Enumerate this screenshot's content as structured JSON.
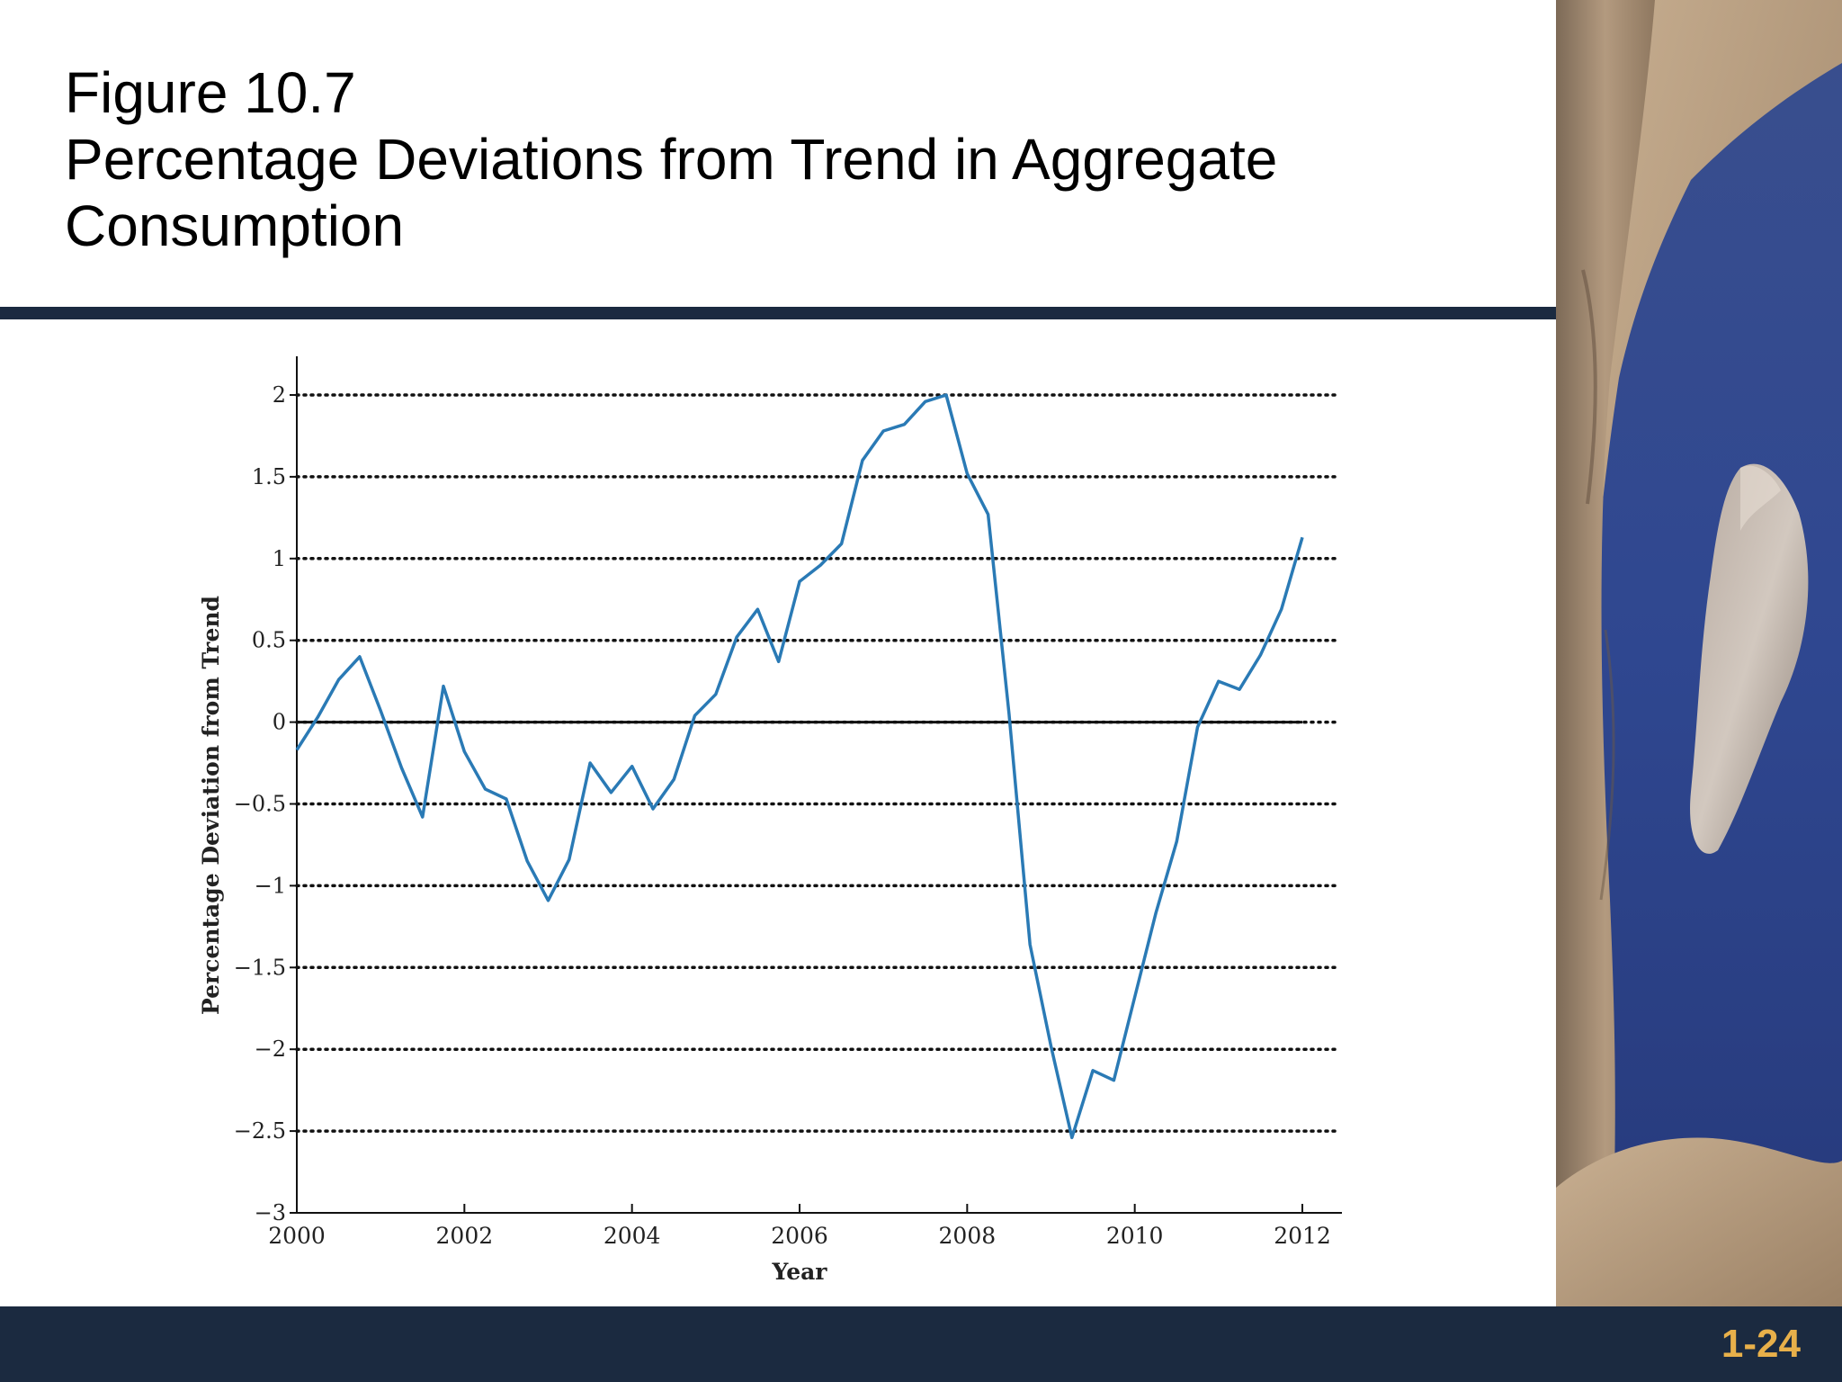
{
  "slide": {
    "title_line1": "Figure 10.7",
    "title_line2": "Percentage Deviations from Trend in Aggregate",
    "title_line3": "Consumption",
    "slide_number": "1-24",
    "colors": {
      "navy": "#1b2a40",
      "slide_number": "#e8b04a",
      "line": "#2a7ab5"
    },
    "decorative_image": "rocks-and-water-photo"
  },
  "chart_data": {
    "type": "line",
    "title": "",
    "xlabel": "Year",
    "ylabel": "Percentage Deviation from Trend",
    "xlim": [
      2000,
      2012.5
    ],
    "ylim": [
      -3,
      2.2
    ],
    "xticks": [
      2000,
      2002,
      2004,
      2006,
      2008,
      2010,
      2012
    ],
    "xtick_labels": [
      "2000",
      "2002",
      "2004",
      "2006",
      "2008",
      "2010",
      "2012"
    ],
    "yticks": [
      2,
      1.5,
      1,
      0.5,
      0,
      -0.5,
      -1,
      -1.5,
      -2,
      -2.5,
      -3
    ],
    "ytick_labels": [
      "2",
      "1.5",
      "1",
      "0.5",
      "0",
      "−0.5",
      "−1",
      "−1.5",
      "−2",
      "−2.5",
      "−3"
    ],
    "grid": "dotted horizontal lines at y ticks",
    "zero_line": true,
    "series": [
      {
        "color": "#2a7ab5",
        "x": [
          2000,
          2000.25,
          2000.5,
          2000.75,
          2001,
          2001.25,
          2001.5,
          2001.75,
          2002,
          2002.25,
          2002.5,
          2002.75,
          2003,
          2003.25,
          2003.5,
          2003.75,
          2004,
          2004.25,
          2004.5,
          2004.75,
          2005,
          2005.25,
          2005.5,
          2005.75,
          2006,
          2006.25,
          2006.5,
          2006.75,
          2007,
          2007.25,
          2007.5,
          2007.75,
          2008,
          2008.25,
          2008.5,
          2008.75,
          2009,
          2009.25,
          2009.5,
          2009.75,
          2010,
          2010.25,
          2010.5,
          2010.75,
          2011,
          2011.25,
          2011.5,
          2011.75,
          2012
        ],
        "y": [
          -0.17,
          0.03,
          0.26,
          0.4,
          0.07,
          -0.28,
          -0.58,
          0.22,
          -0.18,
          -0.41,
          -0.47,
          -0.85,
          -1.09,
          -0.84,
          -0.25,
          -0.43,
          -0.27,
          -0.53,
          -0.35,
          0.04,
          0.17,
          0.52,
          0.69,
          0.37,
          0.86,
          0.96,
          1.09,
          1.6,
          1.78,
          1.82,
          1.96,
          2.0,
          1.52,
          1.27,
          0.05,
          -1.36,
          -1.98,
          -2.54,
          -2.13,
          -2.19,
          -1.68,
          -1.17,
          -0.73,
          -0.03,
          0.25,
          0.2,
          0.41,
          0.69,
          1.13
        ]
      }
    ]
  }
}
